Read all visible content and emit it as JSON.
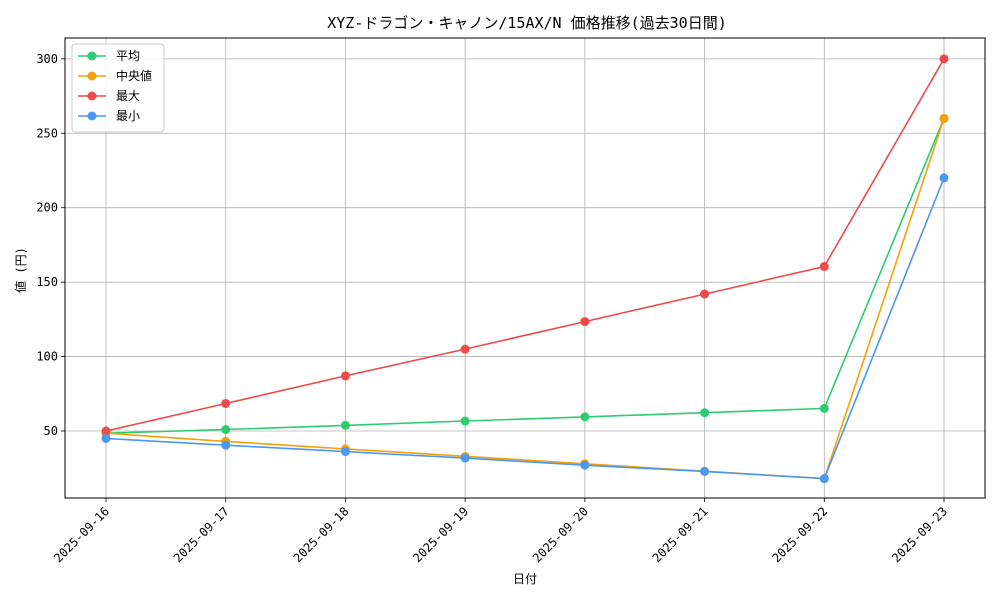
{
  "chart_data": {
    "type": "line",
    "title": "XYZ-ドラゴン・キャノン/15AX/N 価格推移(過去30日間)",
    "xlabel": "日付",
    "ylabel": "値 (円)",
    "categories": [
      "2025-09-16",
      "2025-09-17",
      "2025-09-18",
      "2025-09-19",
      "2025-09-20",
      "2025-09-21",
      "2025-09-22",
      "2025-09-23"
    ],
    "ylim": [
      5,
      314
    ],
    "yticks": [
      50,
      100,
      150,
      200,
      250,
      300
    ],
    "grid": true,
    "legend_position": "top-left",
    "series": [
      {
        "name": "平均",
        "color": "#2ecc71",
        "values": [
          48.5,
          51,
          53.8,
          56.7,
          59.5,
          62.3,
          65.2,
          260
        ]
      },
      {
        "name": "中央値",
        "color": "#f5a00b",
        "values": [
          48.5,
          43,
          38,
          33,
          28,
          23,
          18,
          260
        ]
      },
      {
        "name": "最大",
        "color": "#ef4a4a",
        "values": [
          50,
          68.5,
          87,
          105,
          123.5,
          142,
          160.5,
          300
        ]
      },
      {
        "name": "最小",
        "color": "#4a98f0",
        "values": [
          45,
          40.5,
          36.2,
          31.8,
          27,
          22.8,
          18,
          220
        ]
      }
    ]
  }
}
